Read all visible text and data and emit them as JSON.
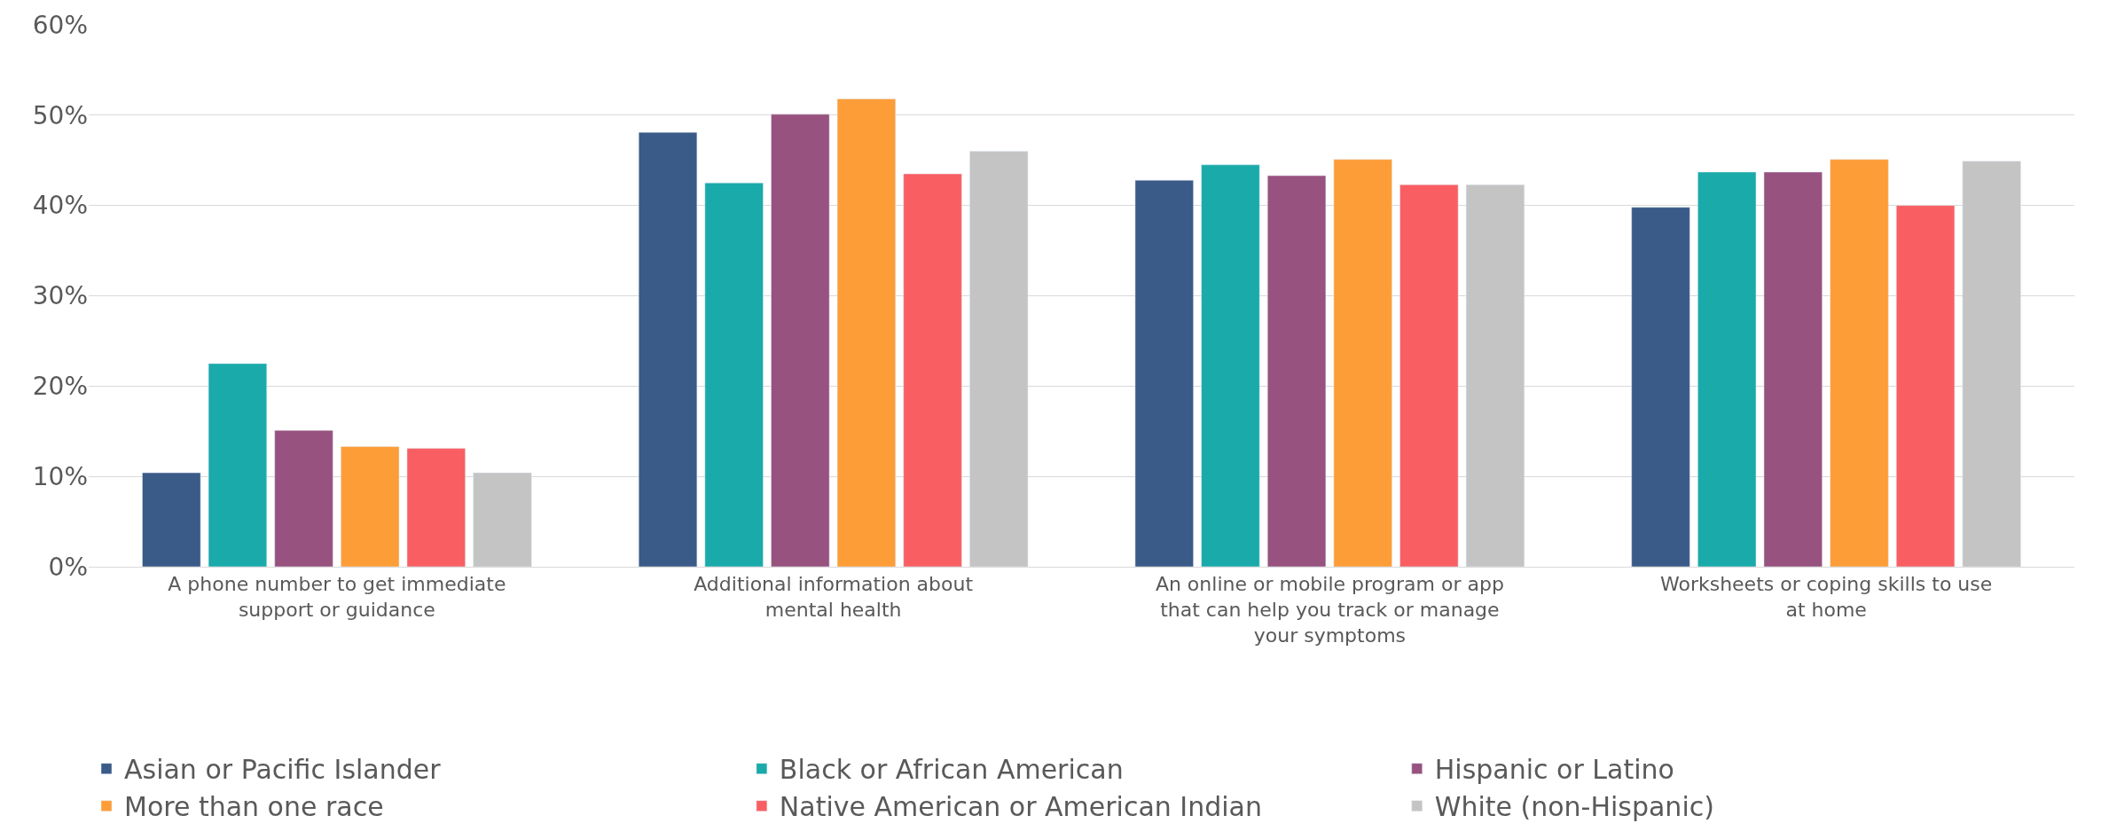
{
  "chart_data": {
    "type": "bar",
    "categories": [
      "A phone number to get immediate support or guidance",
      "Additional information about mental health",
      "An online or mobile program or app that can help you track or manage your symptoms",
      "Worksheets or coping skills to use at home"
    ],
    "series": [
      {
        "name": "Asian or Pacific Islander",
        "color": "#3a5a88",
        "values": [
          10.4,
          48.1,
          42.8,
          39.8
        ]
      },
      {
        "name": "Black or African American",
        "color": "#1aaaaa",
        "values": [
          22.5,
          42.5,
          44.5,
          43.7
        ]
      },
      {
        "name": "Hispanic or Latino",
        "color": "#98527f",
        "values": [
          15.1,
          50.1,
          43.3,
          43.7
        ]
      },
      {
        "name": "More than one race",
        "color": "#fd9d38",
        "values": [
          13.3,
          51.8,
          45.1,
          45.1
        ]
      },
      {
        "name": "Native American or American Indian",
        "color": "#f95f62",
        "values": [
          13.1,
          43.5,
          42.3,
          40.0
        ]
      },
      {
        "name": "White (non-Hispanic)",
        "color": "#c4c4c4",
        "values": [
          10.4,
          46.0,
          42.3,
          44.9
        ]
      }
    ],
    "ylim": [
      0,
      60
    ],
    "yticks": [
      {
        "value": 0,
        "label": "0%"
      },
      {
        "value": 10,
        "label": "10%"
      },
      {
        "value": 20,
        "label": "20%"
      },
      {
        "value": 30,
        "label": "30%"
      },
      {
        "value": 40,
        "label": "40%"
      },
      {
        "value": 50,
        "label": "50%"
      },
      {
        "value": 60,
        "label": "60%"
      }
    ],
    "grid": "y",
    "legend": "bottom"
  }
}
